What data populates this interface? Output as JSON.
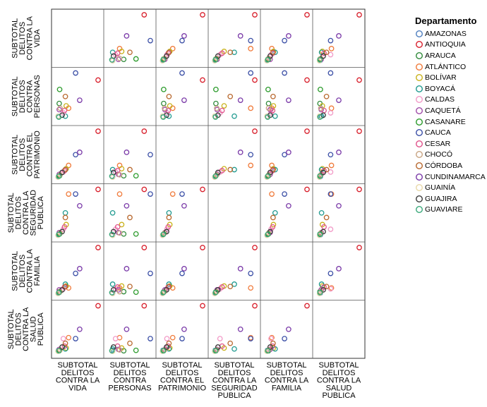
{
  "chart_data": {
    "type": "scatter",
    "subtype": "scatterplot-matrix",
    "variables": [
      {
        "key": "vida",
        "label_lines": [
          "SUBTOTAL",
          "DELITOS",
          "CONTRA LA",
          "VIDA"
        ]
      },
      {
        "key": "personas",
        "label_lines": [
          "SUBTOTAL",
          "DELITOS",
          "CONTRA",
          "PERSONAS"
        ]
      },
      {
        "key": "patrimonio",
        "label_lines": [
          "SUBTOTAL",
          "DELITOS",
          "CONTRA EL",
          "PATRIMONIO"
        ]
      },
      {
        "key": "seguridad",
        "label_lines": [
          "SUBTOTAL",
          "DELITOS",
          "CONTRA LA",
          "SEGURIDAD",
          "PUBLICA"
        ]
      },
      {
        "key": "familia",
        "label_lines": [
          "SUBTOTAL",
          "DELITOS",
          "CONTRA LA",
          "FAMILIA"
        ]
      },
      {
        "key": "salud",
        "label_lines": [
          "SUBTOTAL",
          "DELITOS",
          "CONTRA LA",
          "SALUD",
          "PUBLICA"
        ]
      }
    ],
    "legend": {
      "title": "Departamento",
      "position": "right",
      "entries": [
        {
          "name": "AMAZONAS",
          "color": "#4f7fbf"
        },
        {
          "name": "ANTIOQUIA",
          "color": "#d8202c"
        },
        {
          "name": "ARAUCA",
          "color": "#2f8a3a"
        },
        {
          "name": "ATLÁNTICO",
          "color": "#f07a3a"
        },
        {
          "name": "BOLÍVAR",
          "color": "#c9b21a"
        },
        {
          "name": "BOYACÁ",
          "color": "#1f9a8f"
        },
        {
          "name": "CALDAS",
          "color": "#f29ac7"
        },
        {
          "name": "CAQUETÁ",
          "color": "#a04ba8"
        },
        {
          "name": "CASANARE",
          "color": "#2a9a2a"
        },
        {
          "name": "CAUCA",
          "color": "#3b4fa6"
        },
        {
          "name": "CESAR",
          "color": "#e0528a"
        },
        {
          "name": "CHOCÓ",
          "color": "#c8a482"
        },
        {
          "name": "CÓRDOBA",
          "color": "#b8682e"
        },
        {
          "name": "CUNDINAMARCA",
          "color": "#7a3aa8"
        },
        {
          "name": "GUAINÍA",
          "color": "#e8d8a8"
        },
        {
          "name": "GUAJIRA",
          "color": "#3a3a3a"
        },
        {
          "name": "GUAVIARE",
          "color": "#3aa87a"
        }
      ]
    },
    "records": [
      {
        "dept": "AMAZONAS",
        "values": [
          0.03,
          0.08,
          0.03,
          0.03,
          0.03,
          0.05
        ]
      },
      {
        "dept": "ANTIOQUIA",
        "values": [
          1.0,
          0.85,
          1.0,
          1.0,
          1.0,
          1.0
        ]
      },
      {
        "dept": "ARAUCA",
        "values": [
          0.05,
          0.35,
          0.05,
          0.05,
          0.06,
          0.04
        ]
      },
      {
        "dept": "ATLÁNTICO",
        "values": [
          0.28,
          0.25,
          0.27,
          0.9,
          0.14,
          0.32
        ]
      },
      {
        "dept": "BOLÍVAR",
        "values": [
          0.22,
          0.3,
          0.2,
          0.25,
          0.18,
          0.1
        ]
      },
      {
        "dept": "BOYACÁ",
        "values": [
          0.2,
          0.08,
          0.18,
          0.5,
          0.22,
          0.08
        ]
      },
      {
        "dept": "CALDAS",
        "values": [
          0.15,
          0.15,
          0.13,
          0.15,
          0.12,
          0.3
        ]
      },
      {
        "dept": "CAQUETÁ",
        "values": [
          0.05,
          0.22,
          0.08,
          0.08,
          0.1,
          0.07
        ]
      },
      {
        "dept": "CASANARE",
        "values": [
          0.06,
          0.65,
          0.05,
          0.05,
          0.05,
          0.05
        ]
      },
      {
        "dept": "CAUCA",
        "values": [
          0.45,
          1.0,
          0.5,
          0.9,
          0.45,
          0.3
        ]
      },
      {
        "dept": "CESAR",
        "values": [
          0.18,
          0.2,
          0.16,
          0.2,
          0.16,
          0.14
        ]
      },
      {
        "dept": "CHOCÓ",
        "values": [
          0.07,
          0.25,
          0.07,
          0.07,
          0.06,
          0.06
        ]
      },
      {
        "dept": "CÓRDOBA",
        "values": [
          0.2,
          0.5,
          0.18,
          0.4,
          0.17,
          0.2
        ]
      },
      {
        "dept": "CUNDINAMARCA",
        "values": [
          0.55,
          0.42,
          0.55,
          0.65,
          0.55,
          0.5
        ]
      },
      {
        "dept": "GUAINÍA",
        "values": [
          0.02,
          0.08,
          0.02,
          0.02,
          0.02,
          0.03
        ]
      },
      {
        "dept": "GUAJIRA",
        "values": [
          0.12,
          0.1,
          0.12,
          0.1,
          0.1,
          0.12
        ]
      },
      {
        "dept": "GUAVIARE",
        "values": [
          0.04,
          0.06,
          0.04,
          0.04,
          0.04,
          0.04
        ]
      }
    ],
    "grid": false
  }
}
